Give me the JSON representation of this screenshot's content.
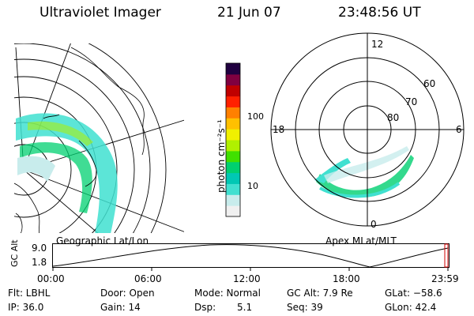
{
  "header": {
    "instrument": "Ultraviolet Imager",
    "date": "21 Jun 07",
    "time": "23:48:56 UT"
  },
  "left_map": {
    "label": "Geographic Lat/Lon"
  },
  "colorbar": {
    "unit_label": "photon cm⁻²s⁻¹",
    "ticks": [
      "100",
      "10"
    ],
    "scale": "log",
    "colors": [
      "#f0f0f0",
      "#c8ecec",
      "#40e0d0",
      "#00c8b4",
      "#00d070",
      "#40e000",
      "#b0f000",
      "#f0f000",
      "#ffc000",
      "#ff8000",
      "#ff2000",
      "#c00000",
      "#800040",
      "#200040"
    ]
  },
  "polar_plot": {
    "label": "Apex MLat/MLT",
    "mlt_labels": [
      "12",
      "18",
      "6",
      "0"
    ],
    "lat_labels": [
      "60",
      "70",
      "80"
    ]
  },
  "timeline": {
    "y_title": "GC Alt",
    "y_ticks": [
      "9.0",
      "1.8"
    ],
    "x_ticks": [
      "00:00",
      "06:00",
      "12:00",
      "18:00",
      "23:59"
    ]
  },
  "status": {
    "flt": "Flt: LBHL",
    "door": "Door: Open",
    "mode": "Mode: Normal",
    "gc_alt": "GC Alt: 7.9 Re",
    "glat": "GLat: −58.6",
    "ip": "IP: 36.0",
    "gain": "Gain: 14",
    "dsp_label": "Dsp:",
    "dsp_value": "5.1",
    "seq": "Seq: 39",
    "glon": "GLon:  42.4"
  }
}
